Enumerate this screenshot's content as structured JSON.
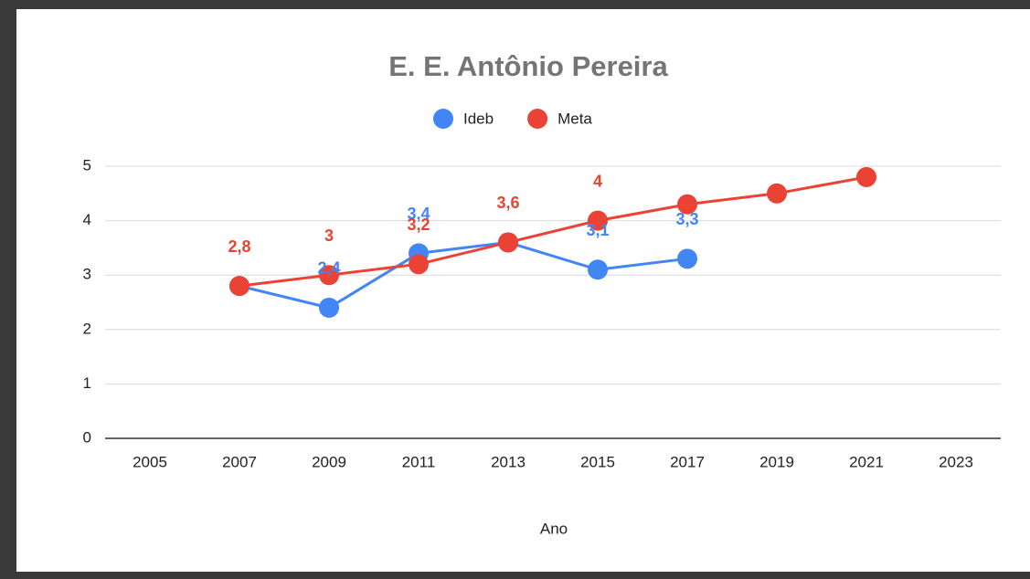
{
  "chart_data": {
    "type": "line",
    "title": "E. E. Antônio Pereira",
    "x_label": "Ano",
    "x": [
      2007,
      2009,
      2011,
      2013,
      2015,
      2017,
      2019,
      2021
    ],
    "series": [
      {
        "name": "Ideb",
        "color": "#4285f4",
        "values": [
          2.8,
          2.4,
          3.4,
          3.6,
          3.1,
          3.3,
          null,
          null
        ],
        "value_labels": [
          null,
          "2,4",
          "3,4",
          null,
          "3,1",
          "3,3",
          null,
          null
        ]
      },
      {
        "name": "Meta",
        "color": "#ea4335",
        "values": [
          2.8,
          3,
          3.2,
          3.6,
          4,
          4.3,
          4.5,
          4.8
        ],
        "value_labels": [
          "2,8",
          "3",
          "3,2",
          "3,6",
          "4",
          null,
          null,
          null
        ]
      }
    ],
    "xlim": [
      2004,
      2024
    ],
    "xticks": [
      2005,
      2007,
      2009,
      2011,
      2013,
      2015,
      2017,
      2019,
      2021,
      2023
    ],
    "ylim": [
      0,
      5
    ],
    "yticks": [
      0,
      1,
      2,
      3,
      4,
      5
    ],
    "grid": true,
    "legend": "top"
  }
}
